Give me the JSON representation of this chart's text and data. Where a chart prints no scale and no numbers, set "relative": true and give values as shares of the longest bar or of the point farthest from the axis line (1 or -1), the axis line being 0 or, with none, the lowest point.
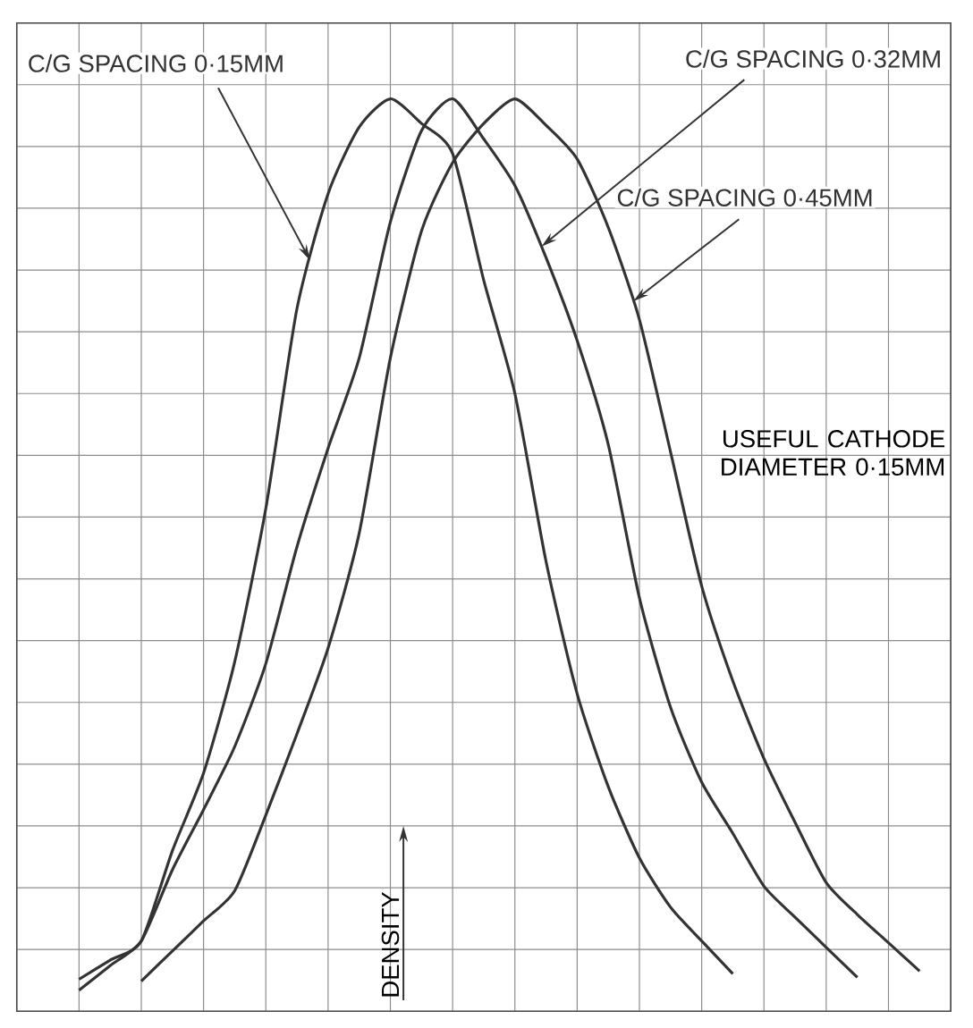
{
  "chart_data": {
    "type": "line",
    "relative": true,
    "grid": true,
    "ylabel": "DENSITY",
    "categories": [
      null,
      null,
      null,
      null,
      null,
      null,
      null,
      null,
      null,
      null,
      null,
      null,
      null,
      null,
      null,
      null,
      null,
      null,
      null,
      null,
      null,
      null,
      null,
      null,
      null,
      null,
      null,
      null,
      null,
      null,
      null
    ],
    "series": [
      {
        "name": "C/G SPACING 0·15MM",
        "color": "#333333",
        "values": [
          null,
          null,
          0.035,
          0.056,
          0.077,
          0.176,
          0.261,
          0.383,
          0.551,
          0.77,
          0.896,
          0.969,
          1,
          0.973,
          0.94,
          0.801,
          0.677,
          0.493,
          0.348,
          0.246,
          0.168,
          0.114,
          0.077,
          0.041,
          null,
          null,
          null,
          null,
          null,
          null,
          null
        ]
      },
      {
        "name": "C/G SPACING 0·32MM",
        "color": "#333333",
        "values": [
          null,
          null,
          0.023,
          0.05,
          0.077,
          0.155,
          0.221,
          0.29,
          0.381,
          0.509,
          0.617,
          0.716,
          0.865,
          0.965,
          1,
          0.956,
          0.905,
          0.826,
          0.735,
          0.621,
          0.453,
          0.333,
          0.251,
          0.195,
          0.137,
          0.103,
          0.07,
          0.037,
          null,
          null,
          null
        ]
      },
      {
        "name": "C/G SPACING 0·45MM",
        "color": "#333333",
        "values": [
          null,
          null,
          null,
          null,
          0.033,
          0.066,
          0.099,
          0.132,
          0.215,
          0.304,
          0.398,
          0.524,
          0.716,
          0.855,
          0.93,
          0.973,
          1,
          0.971,
          0.934,
          0.859,
          0.758,
          0.613,
          0.466,
          0.362,
          0.277,
          0.207,
          0.141,
          0.106,
          0.075,
          0.044,
          null
        ]
      }
    ],
    "annotations": [
      "USEFUL CATHODE DIAMETER 0·15MM"
    ]
  }
}
